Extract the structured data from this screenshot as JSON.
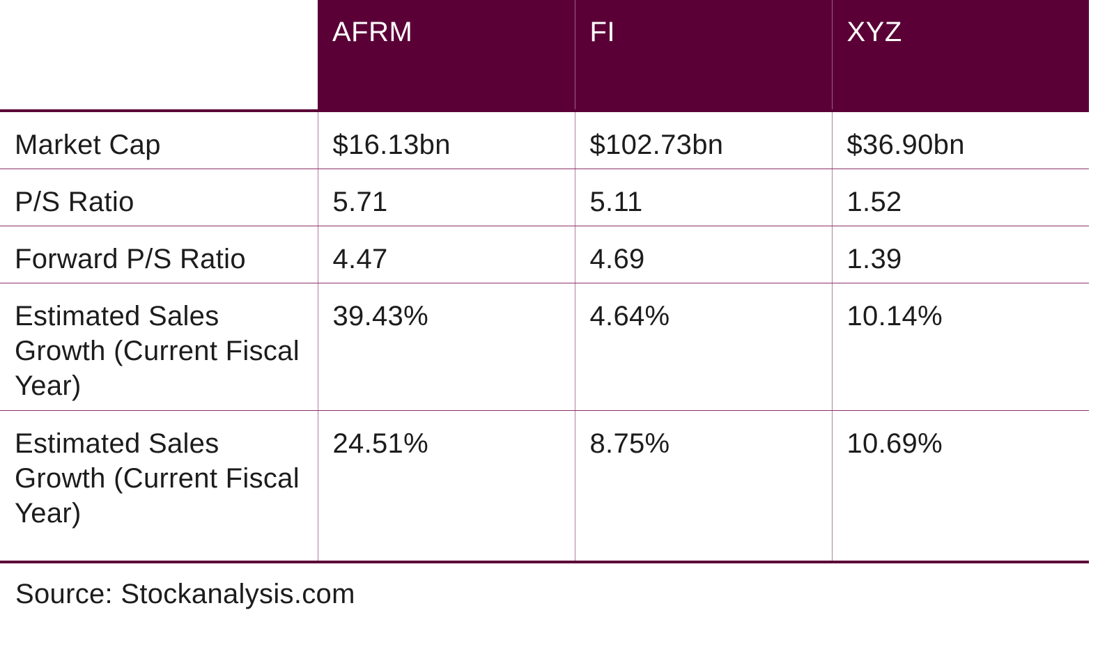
{
  "table": {
    "headers": [
      "",
      "AFRM",
      "FI",
      "XYZ"
    ],
    "rows": [
      {
        "metric": "Market Cap",
        "values": [
          "$16.13bn",
          "$102.73bn",
          "$36.90bn"
        ]
      },
      {
        "metric": "P/S Ratio",
        "values": [
          "5.71",
          "5.11",
          "1.52"
        ]
      },
      {
        "metric": "Forward P/S Ratio",
        "values": [
          "4.47",
          "4.69",
          "1.39"
        ]
      },
      {
        "metric": "Estimated Sales Growth (Current Fiscal Year)",
        "values": [
          "39.43%",
          "4.64%",
          "10.14%"
        ]
      },
      {
        "metric": "Estimated Sales Growth (Current Fiscal Year)",
        "values": [
          "24.51%",
          "8.75%",
          "10.69%"
        ]
      }
    ]
  },
  "source": "Source: Stockanalysis.com",
  "colors": {
    "header_bg": "#5b0037",
    "header_text": "#ffffff",
    "rule": "#5b0037"
  }
}
